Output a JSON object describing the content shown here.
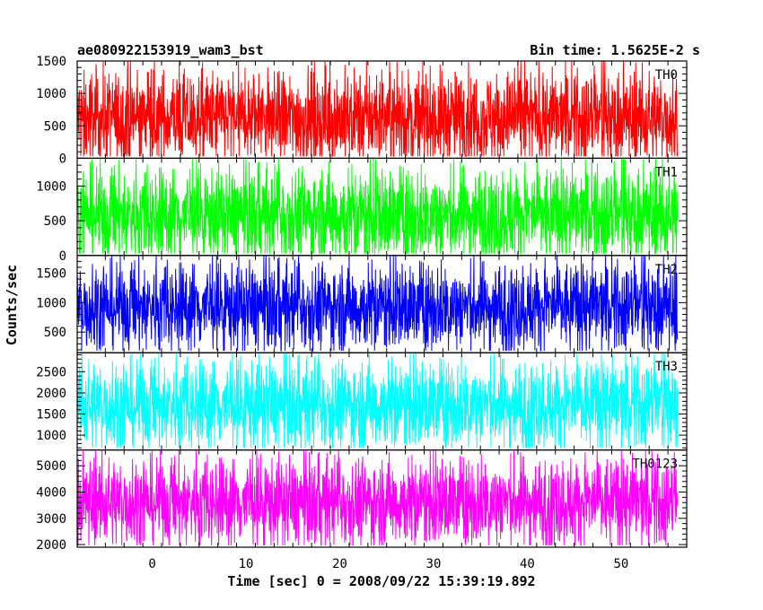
{
  "chart_data": {
    "type": "line",
    "title_left": "ae080922153919_wam3_bst",
    "title_right": "Bin time: 1.5625E-2 s",
    "xlabel": "Time [sec] 0 = 2008/09/22 15:39:19.892",
    "ylabel": "Counts/sec",
    "xlim": [
      -8,
      57
    ],
    "x_range": [
      -8,
      56
    ],
    "x_ticks": [
      0,
      10,
      20,
      30,
      40,
      50
    ],
    "grid": false,
    "panels": [
      {
        "name": "TH0",
        "color": "#ff0000",
        "ylim": [
          0,
          1500
        ],
        "y_ticks": [
          0,
          500,
          1000,
          1500
        ],
        "mean": 620,
        "low": 150,
        "high": 1300,
        "peak": 1500
      },
      {
        "name": "TH1",
        "color": "#00ff00",
        "ylim": [
          0,
          1400
        ],
        "y_ticks": [
          0,
          500,
          1000
        ],
        "mean": 580,
        "low": 100,
        "high": 1200,
        "peak": 1400
      },
      {
        "name": "TH2",
        "color": "#0000ff",
        "ylim": [
          150,
          1800
        ],
        "y_ticks": [
          500,
          1000,
          1500
        ],
        "mean": 930,
        "low": 350,
        "high": 1550,
        "peak": 1800
      },
      {
        "name": "TH3",
        "color": "#00ffff",
        "ylim": [
          650,
          2950
        ],
        "y_ticks": [
          1000,
          1500,
          2000,
          2500
        ],
        "mean": 1720,
        "low": 900,
        "high": 2600,
        "peak": 2950
      },
      {
        "name": "TH0123",
        "color": "#ff00ff",
        "ylim": [
          1900,
          5600
        ],
        "y_ticks": [
          2000,
          3000,
          4000,
          5000
        ],
        "mean": 3620,
        "low": 2300,
        "high": 5000,
        "peak": 5600
      }
    ]
  }
}
